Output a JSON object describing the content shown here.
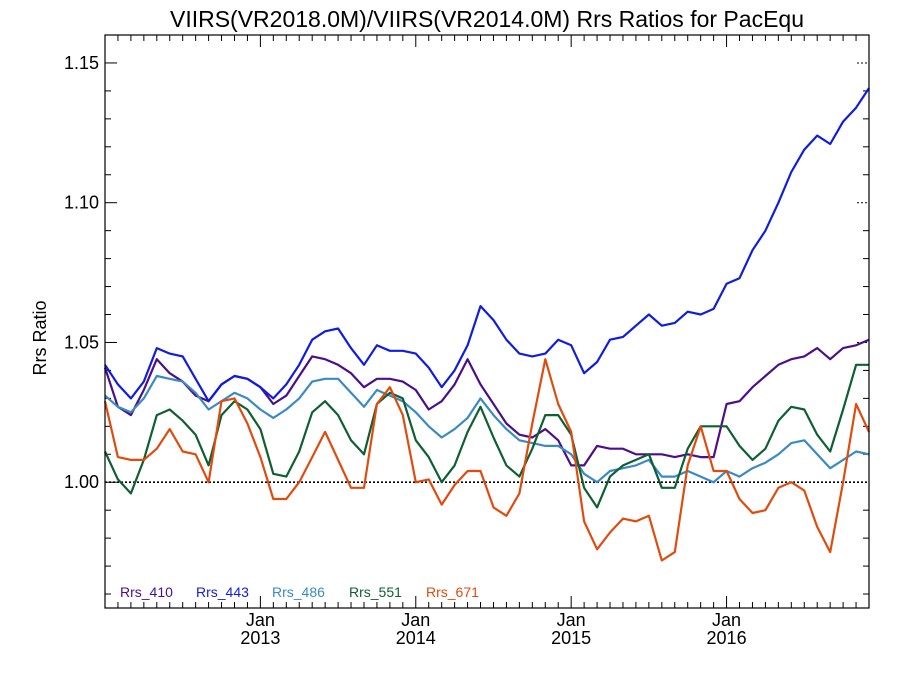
{
  "chart_data": {
    "type": "line",
    "title": "VIIRS(VR2018.0M)/VIIRS(VR2014.0M)  Rrs Ratios for PacEqu",
    "ylabel": "Rrs Ratio",
    "xlabel": "",
    "ylim": [
      0.955,
      1.16
    ],
    "xlim": [
      "2012-01",
      "2016-12"
    ],
    "x_ticks": [
      {
        "month": "Jan",
        "year": "2013",
        "x": "2013-01"
      },
      {
        "month": "Jan",
        "year": "2014",
        "x": "2014-01"
      },
      {
        "month": "Jan",
        "year": "2015",
        "x": "2015-01"
      },
      {
        "month": "Jan",
        "year": "2016",
        "x": "2016-01"
      }
    ],
    "y_ticks": [
      "1.00",
      "1.05",
      "1.10",
      "1.15"
    ],
    "reference_line": 1.0,
    "legend_position": "bottom-left",
    "x": [
      "2012-01",
      "2012-02",
      "2012-03",
      "2012-04",
      "2012-05",
      "2012-06",
      "2012-07",
      "2012-08",
      "2012-09",
      "2012-10",
      "2012-11",
      "2012-12",
      "2013-01",
      "2013-02",
      "2013-03",
      "2013-04",
      "2013-05",
      "2013-06",
      "2013-07",
      "2013-08",
      "2013-09",
      "2013-10",
      "2013-11",
      "2013-12",
      "2014-01",
      "2014-02",
      "2014-03",
      "2014-04",
      "2014-05",
      "2014-06",
      "2014-07",
      "2014-08",
      "2014-09",
      "2014-10",
      "2014-11",
      "2014-12",
      "2015-01",
      "2015-02",
      "2015-03",
      "2015-04",
      "2015-05",
      "2015-06",
      "2015-07",
      "2015-08",
      "2015-09",
      "2015-10",
      "2015-11",
      "2015-12",
      "2016-01",
      "2016-02",
      "2016-03",
      "2016-04",
      "2016-05",
      "2016-06",
      "2016-07",
      "2016-08",
      "2016-09",
      "2016-10",
      "2016-11",
      "2016-12"
    ],
    "series": [
      {
        "name": "Rrs_410",
        "color": "#4b0f8c",
        "values": [
          1.041,
          1.027,
          1.024,
          1.033,
          1.044,
          1.039,
          1.036,
          1.031,
          1.029,
          1.035,
          1.038,
          1.037,
          1.034,
          1.028,
          1.031,
          1.038,
          1.045,
          1.044,
          1.042,
          1.039,
          1.034,
          1.037,
          1.037,
          1.036,
          1.033,
          1.026,
          1.029,
          1.035,
          1.044,
          1.035,
          1.028,
          1.021,
          1.017,
          1.016,
          1.019,
          1.015,
          1.006,
          1.006,
          1.013,
          1.012,
          1.012,
          1.01,
          1.01,
          1.01,
          1.009,
          1.01,
          1.009,
          1.009,
          1.028,
          1.029,
          1.034,
          1.038,
          1.042,
          1.044,
          1.045,
          1.048,
          1.044,
          1.048,
          1.049,
          1.051
        ]
      },
      {
        "name": "Rrs_443",
        "color": "#0f1de0",
        "values": [
          1.042,
          1.035,
          1.03,
          1.036,
          1.048,
          1.046,
          1.045,
          1.037,
          1.029,
          1.035,
          1.038,
          1.037,
          1.034,
          1.03,
          1.035,
          1.042,
          1.051,
          1.054,
          1.055,
          1.048,
          1.042,
          1.049,
          1.047,
          1.047,
          1.046,
          1.041,
          1.034,
          1.04,
          1.049,
          1.063,
          1.058,
          1.051,
          1.046,
          1.045,
          1.046,
          1.051,
          1.049,
          1.039,
          1.043,
          1.051,
          1.052,
          1.056,
          1.06,
          1.056,
          1.057,
          1.061,
          1.06,
          1.062,
          1.071,
          1.073,
          1.083,
          1.09,
          1.1,
          1.111,
          1.119,
          1.124,
          1.121,
          1.129,
          1.134,
          1.141
        ]
      },
      {
        "name": "Rrs_486",
        "color": "#3a8ac4",
        "values": [
          1.031,
          1.027,
          1.025,
          1.03,
          1.038,
          1.037,
          1.036,
          1.032,
          1.026,
          1.029,
          1.032,
          1.03,
          1.026,
          1.023,
          1.026,
          1.03,
          1.036,
          1.037,
          1.037,
          1.032,
          1.027,
          1.033,
          1.031,
          1.029,
          1.025,
          1.02,
          1.016,
          1.019,
          1.023,
          1.03,
          1.024,
          1.019,
          1.015,
          1.014,
          1.013,
          1.013,
          1.01,
          1.003,
          1.0,
          1.004,
          1.005,
          1.006,
          1.008,
          1.002,
          1.002,
          1.004,
          1.002,
          1.0,
          1.004,
          1.002,
          1.005,
          1.007,
          1.01,
          1.014,
          1.015,
          1.01,
          1.005,
          1.008,
          1.011,
          1.01
        ]
      },
      {
        "name": "Rrs_551",
        "color": "#0e5f31",
        "values": [
          1.011,
          1.001,
          0.996,
          1.008,
          1.024,
          1.026,
          1.022,
          1.017,
          1.006,
          1.024,
          1.029,
          1.026,
          1.019,
          1.003,
          1.002,
          1.011,
          1.025,
          1.029,
          1.024,
          1.015,
          1.01,
          1.028,
          1.032,
          1.03,
          1.015,
          1.009,
          1.0,
          1.006,
          1.018,
          1.027,
          1.016,
          1.006,
          1.002,
          1.012,
          1.024,
          1.024,
          1.017,
          0.998,
          0.991,
          1.002,
          1.006,
          1.008,
          1.01,
          0.998,
          0.998,
          1.012,
          1.02,
          1.02,
          1.02,
          1.013,
          1.008,
          1.012,
          1.022,
          1.027,
          1.026,
          1.017,
          1.011,
          1.026,
          1.042,
          1.042
        ]
      },
      {
        "name": "Rrs_671",
        "color": "#e04b0e",
        "values": [
          1.029,
          1.009,
          1.008,
          1.008,
          1.012,
          1.019,
          1.011,
          1.01,
          1.0,
          1.029,
          1.03,
          1.021,
          1.009,
          0.994,
          0.994,
          1.0,
          1.009,
          1.018,
          1.008,
          0.998,
          0.998,
          1.028,
          1.034,
          1.024,
          1.0,
          1.001,
          0.992,
          0.999,
          1.004,
          1.004,
          0.991,
          0.988,
          0.996,
          1.021,
          1.044,
          1.028,
          1.018,
          0.986,
          0.976,
          0.982,
          0.987,
          0.986,
          0.988,
          0.972,
          0.975,
          1.006,
          1.02,
          1.004,
          1.004,
          0.994,
          0.989,
          0.99,
          0.998,
          1.0,
          0.997,
          0.984,
          0.975,
          1.0,
          1.028,
          1.018
        ]
      }
    ]
  }
}
